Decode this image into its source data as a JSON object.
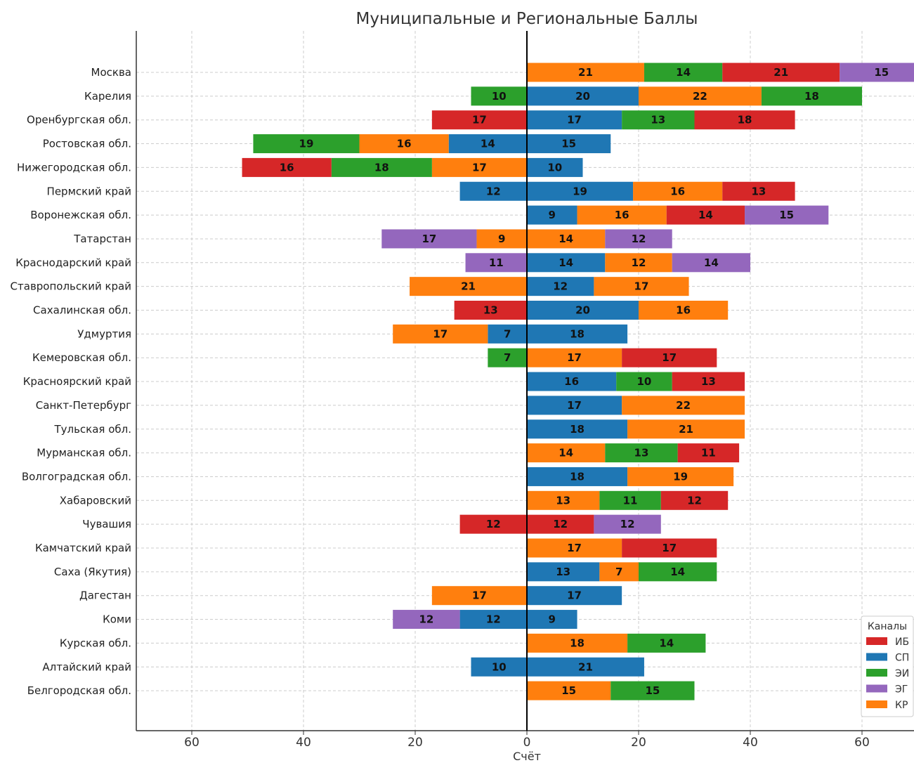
{
  "chart_data": {
    "type": "bar",
    "orientation": "horizontal-diverging-stacked",
    "title": "Муниципальные и Региональные Баллы",
    "xlabel": "Счёт",
    "ylabel": "",
    "xlim": [
      -70,
      70
    ],
    "xticks": [
      -60,
      -40,
      -20,
      0,
      20,
      40,
      60
    ],
    "xtick_labels": [
      "60",
      "40",
      "20",
      "0",
      "20",
      "40",
      "60"
    ],
    "grid": true,
    "legend": {
      "title": "Каналы",
      "placement": "bottom-right",
      "entries": [
        {
          "key": "ИБ",
          "label": "ИБ",
          "color": "#d62728"
        },
        {
          "key": "СП",
          "label": "СП",
          "color": "#1f77b4"
        },
        {
          "key": "ЭИ",
          "label": "ЭИ",
          "color": "#2ca02c"
        },
        {
          "key": "ЭГ",
          "label": "ЭГ",
          "color": "#9467bd"
        },
        {
          "key": "КР",
          "label": "КР",
          "color": "#ff7f0e"
        }
      ]
    },
    "categories": [
      "Москва",
      "Карелия",
      "Оренбургская обл.",
      "Ростовская обл.",
      "Нижегородская обл.",
      "Пермский край",
      "Воронежская обл.",
      "Татарстан",
      "Краснодарский край",
      "Ставропольский край",
      "Сахалинская обл.",
      "Удмуртия",
      "Кемеровская обл.",
      "Красноярский край",
      "Санкт-Петербург",
      "Тульская обл.",
      "Мурманская обл.",
      "Волгоградская обл.",
      "Хабаровский",
      "Чувашия",
      "Камчатский край",
      "Саха (Якутия)",
      "Дагестан",
      "Коми",
      "Курская обл.",
      "Алтайский край",
      "Белгородская обл."
    ],
    "rows": [
      {
        "left": [],
        "right": [
          [
            "КР",
            21
          ],
          [
            "ЭИ",
            14
          ],
          [
            "ИБ",
            21
          ],
          [
            "ЭГ",
            15
          ]
        ]
      },
      {
        "left": [
          [
            "ЭИ",
            10
          ]
        ],
        "right": [
          [
            "СП",
            20
          ],
          [
            "КР",
            22
          ],
          [
            "ЭИ",
            18
          ]
        ]
      },
      {
        "left": [
          [
            "ИБ",
            17
          ]
        ],
        "right": [
          [
            "СП",
            17
          ],
          [
            "ЭИ",
            13
          ],
          [
            "ИБ",
            18
          ]
        ]
      },
      {
        "left": [
          [
            "СП",
            14
          ],
          [
            "КР",
            16
          ],
          [
            "ЭИ",
            19
          ]
        ],
        "right": [
          [
            "СП",
            15
          ]
        ]
      },
      {
        "left": [
          [
            "КР",
            17
          ],
          [
            "ЭИ",
            18
          ],
          [
            "ИБ",
            16
          ]
        ],
        "right": [
          [
            "СП",
            10
          ]
        ]
      },
      {
        "left": [
          [
            "СП",
            12
          ]
        ],
        "right": [
          [
            "СП",
            19
          ],
          [
            "КР",
            16
          ],
          [
            "ИБ",
            13
          ]
        ]
      },
      {
        "left": [],
        "right": [
          [
            "СП",
            9
          ],
          [
            "КР",
            16
          ],
          [
            "ИБ",
            14
          ],
          [
            "ЭГ",
            15
          ]
        ]
      },
      {
        "left": [
          [
            "КР",
            9
          ],
          [
            "ЭГ",
            17
          ]
        ],
        "right": [
          [
            "КР",
            14
          ],
          [
            "ЭГ",
            12
          ]
        ]
      },
      {
        "left": [
          [
            "ЭГ",
            11
          ]
        ],
        "right": [
          [
            "СП",
            14
          ],
          [
            "КР",
            12
          ],
          [
            "ЭГ",
            14
          ]
        ]
      },
      {
        "left": [
          [
            "КР",
            21
          ]
        ],
        "right": [
          [
            "СП",
            12
          ],
          [
            "КР",
            17
          ]
        ]
      },
      {
        "left": [
          [
            "ИБ",
            13
          ]
        ],
        "right": [
          [
            "СП",
            20
          ],
          [
            "КР",
            16
          ]
        ]
      },
      {
        "left": [
          [
            "СП",
            7
          ],
          [
            "КР",
            17
          ]
        ],
        "right": [
          [
            "СП",
            18
          ]
        ]
      },
      {
        "left": [
          [
            "ЭИ",
            7
          ]
        ],
        "right": [
          [
            "КР",
            17
          ],
          [
            "ИБ",
            17
          ]
        ]
      },
      {
        "left": [],
        "right": [
          [
            "СП",
            16
          ],
          [
            "ЭИ",
            10
          ],
          [
            "ИБ",
            13
          ]
        ]
      },
      {
        "left": [],
        "right": [
          [
            "СП",
            17
          ],
          [
            "КР",
            22
          ]
        ]
      },
      {
        "left": [],
        "right": [
          [
            "СП",
            18
          ],
          [
            "КР",
            21
          ]
        ]
      },
      {
        "left": [],
        "right": [
          [
            "КР",
            14
          ],
          [
            "ЭИ",
            13
          ],
          [
            "ИБ",
            11
          ]
        ]
      },
      {
        "left": [],
        "right": [
          [
            "СП",
            18
          ],
          [
            "КР",
            19
          ]
        ]
      },
      {
        "left": [],
        "right": [
          [
            "КР",
            13
          ],
          [
            "ЭИ",
            11
          ],
          [
            "ИБ",
            12
          ]
        ]
      },
      {
        "left": [
          [
            "ИБ",
            12
          ]
        ],
        "right": [
          [
            "ИБ",
            12
          ],
          [
            "ЭГ",
            12
          ]
        ]
      },
      {
        "left": [],
        "right": [
          [
            "КР",
            17
          ],
          [
            "ИБ",
            17
          ]
        ]
      },
      {
        "left": [],
        "right": [
          [
            "СП",
            13
          ],
          [
            "КР",
            7
          ],
          [
            "ЭИ",
            14
          ]
        ]
      },
      {
        "left": [
          [
            "КР",
            17
          ]
        ],
        "right": [
          [
            "СП",
            17
          ]
        ]
      },
      {
        "left": [
          [
            "СП",
            12
          ],
          [
            "ЭГ",
            12
          ]
        ],
        "right": [
          [
            "СП",
            9
          ]
        ]
      },
      {
        "left": [],
        "right": [
          [
            "КР",
            18
          ],
          [
            "ЭИ",
            14
          ]
        ]
      },
      {
        "left": [
          [
            "СП",
            10
          ]
        ],
        "right": [
          [
            "СП",
            21
          ]
        ]
      },
      {
        "left": [],
        "right": [
          [
            "КР",
            15
          ],
          [
            "ЭИ",
            15
          ]
        ]
      }
    ]
  }
}
